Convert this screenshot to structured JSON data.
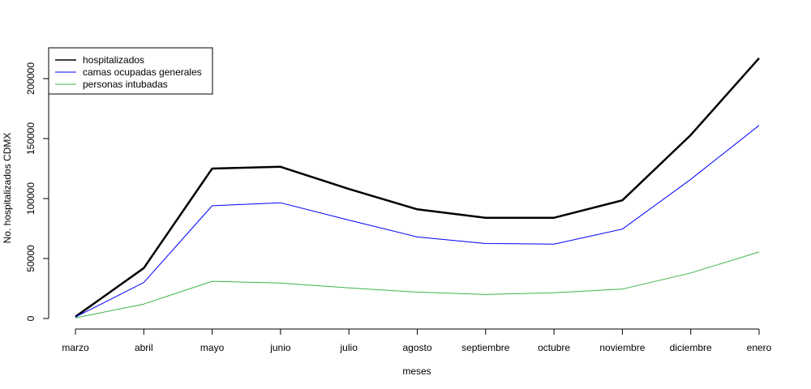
{
  "chart_data": {
    "type": "line",
    "xlabel": "meses",
    "ylabel": "No. hospitalizados CDMX",
    "categories": [
      "marzo",
      "abril",
      "mayo",
      "junio",
      "julio",
      "agosto",
      "septiembre",
      "octubre",
      "noviembre",
      "diciembre",
      "enero"
    ],
    "ylim": [
      0,
      220000
    ],
    "yticks": [
      0,
      50000,
      100000,
      150000,
      200000
    ],
    "ytick_labels": [
      "0",
      "50000",
      "100000",
      "150000",
      "200000"
    ],
    "grid": false,
    "legend_position": "top-left",
    "series": [
      {
        "name": "hospitalizados",
        "color": "#000000",
        "values": [
          1500,
          42000,
          125000,
          126500,
          108000,
          91000,
          84000,
          84000,
          98500,
          153000,
          217000
        ]
      },
      {
        "name": "camas ocupadas generales",
        "color": "#0000ff",
        "values": [
          1200,
          30000,
          94000,
          96500,
          82000,
          68000,
          62500,
          62000,
          74500,
          116000,
          161000
        ]
      },
      {
        "name": "personas intubadas",
        "color": "#3cb44b",
        "values": [
          500,
          12000,
          31000,
          29500,
          25500,
          22000,
          20000,
          21500,
          24500,
          38000,
          55500
        ]
      }
    ]
  }
}
